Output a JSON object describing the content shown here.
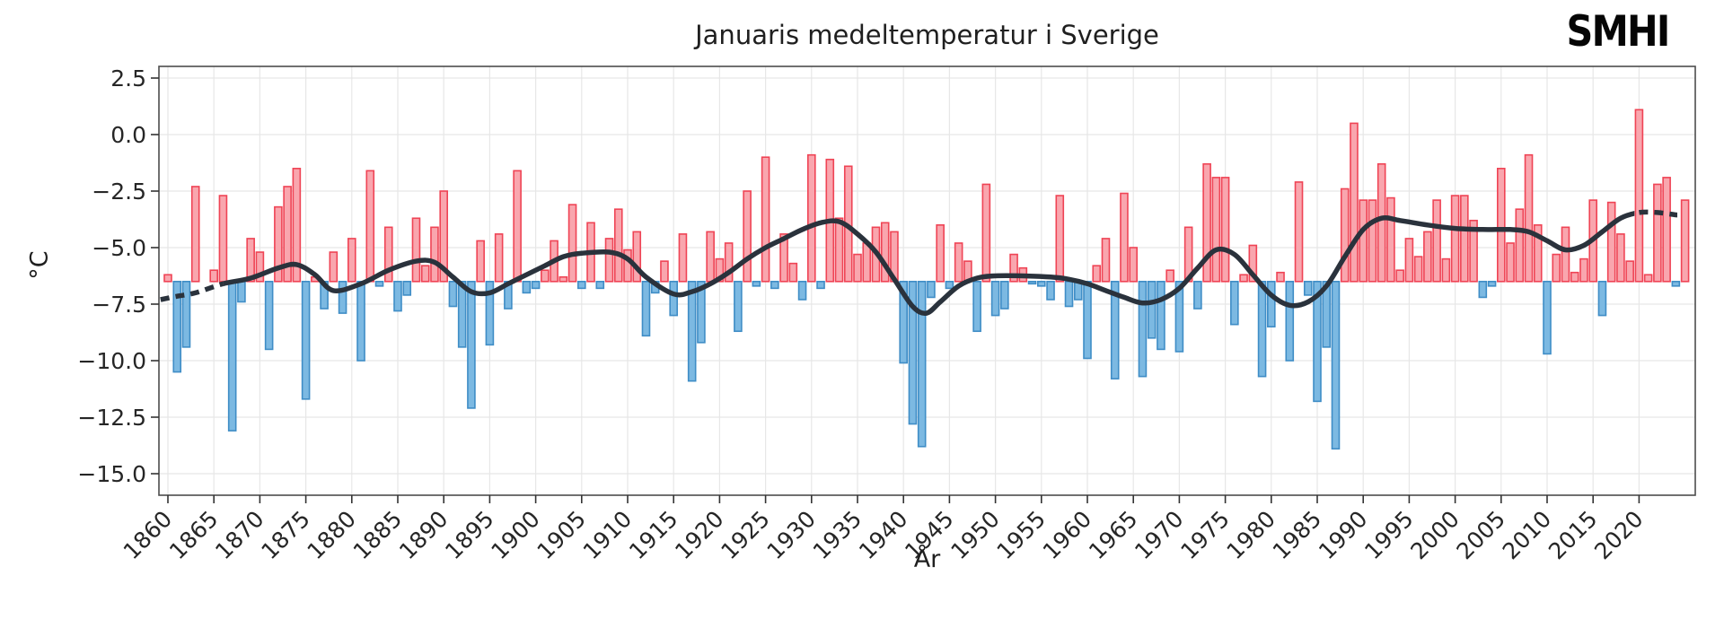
{
  "header": {
    "title": "Januaris medeltemperatur i Sverige",
    "logo_text": "SMHI"
  },
  "chart_data": {
    "type": "bar",
    "title": "Januaris medeltemperatur i Sverige",
    "xlabel": "År",
    "ylabel": "°C",
    "grid": true,
    "legend": "none",
    "xlim": [
      1859,
      2026.2
    ],
    "ylim": [
      -16.1,
      3.0
    ],
    "baseline": -6.5,
    "ytick_values": [
      2.5,
      0.0,
      -2.5,
      -5.0,
      -7.5,
      -10.0,
      -12.5,
      -15.0
    ],
    "ytick_labels": [
      "2.5",
      "0.0",
      "−2.5",
      "−5.0",
      "−7.5",
      "−10.0",
      "−12.5",
      "−15.0"
    ],
    "xtick_labels": [
      "1860",
      "1865",
      "1870",
      "1875",
      "1880",
      "1885",
      "1890",
      "1895",
      "1900",
      "1905",
      "1910",
      "1915",
      "1920",
      "1925",
      "1930",
      "1935",
      "1940",
      "1945",
      "1950",
      "1955",
      "1960",
      "1965",
      "1970",
      "1975",
      "1980",
      "1985",
      "1990",
      "1995",
      "2000",
      "2005",
      "2010",
      "2015",
      "2020"
    ],
    "year_start": 1860,
    "year_end": 2025,
    "values": [
      -6.2,
      -10.5,
      -9.4,
      -2.3,
      -6.5,
      -6.0,
      -2.7,
      -13.1,
      -7.4,
      -4.6,
      -5.2,
      -9.5,
      -3.2,
      -2.3,
      -1.5,
      -11.7,
      -6.3,
      -7.7,
      -5.2,
      -7.9,
      -4.6,
      -10.0,
      -1.6,
      -6.7,
      -4.1,
      -7.8,
      -7.1,
      -3.7,
      -5.8,
      -4.1,
      -2.5,
      -7.6,
      -9.4,
      -12.1,
      -4.7,
      -9.3,
      -4.4,
      -7.7,
      -1.6,
      -7.0,
      -6.8,
      -6.0,
      -4.7,
      -6.3,
      -3.1,
      -6.8,
      -3.9,
      -6.8,
      -4.6,
      -3.3,
      -5.1,
      -4.3,
      -8.9,
      -7.0,
      -5.6,
      -8.0,
      -4.4,
      -10.9,
      -9.2,
      -4.3,
      -5.5,
      -4.8,
      -8.7,
      -2.5,
      -6.7,
      -1.0,
      -6.8,
      -4.4,
      -5.7,
      -7.3,
      -0.9,
      -6.8,
      -1.1,
      -3.7,
      -1.4,
      -5.3,
      -4.8,
      -4.1,
      -3.9,
      -4.3,
      -10.1,
      -12.8,
      -13.8,
      -7.2,
      -4.0,
      -6.8,
      -4.8,
      -5.6,
      -8.7,
      -2.2,
      -8.0,
      -7.7,
      -5.3,
      -5.9,
      -6.6,
      -6.7,
      -7.3,
      -2.7,
      -7.6,
      -7.3,
      -9.9,
      -5.8,
      -4.6,
      -10.8,
      -2.6,
      -5.0,
      -10.7,
      -9.0,
      -9.5,
      -6.0,
      -9.6,
      -4.1,
      -7.7,
      -1.3,
      -1.9,
      -1.9,
      -8.4,
      -6.2,
      -4.9,
      -10.7,
      -8.5,
      -6.1,
      -10.0,
      -2.1,
      -7.1,
      -11.8,
      -9.4,
      -13.9,
      -2.4,
      0.5,
      -2.9,
      -2.9,
      -1.3,
      -2.8,
      -6.0,
      -4.6,
      -5.4,
      -4.3,
      -2.9,
      -5.5,
      -2.7,
      -2.7,
      -3.8,
      -7.2,
      -6.7,
      -1.5,
      -4.8,
      -3.3,
      -0.9,
      -4.0,
      -9.7,
      -5.3,
      -4.1,
      -6.1,
      -5.5,
      -2.9,
      -8.0,
      -3.0,
      -4.4,
      -5.6,
      1.1,
      -6.2,
      -2.2,
      -1.9,
      -6.7,
      -2.9
    ],
    "smoothed_line": {
      "dashed_until_year": 1866,
      "dashed_from_year": 2019.5,
      "points": [
        [
          1859.2,
          -7.3
        ],
        [
          1861,
          -7.15
        ],
        [
          1863,
          -7.0
        ],
        [
          1866,
          -6.6
        ],
        [
          1869,
          -6.35
        ],
        [
          1872,
          -5.9
        ],
        [
          1874,
          -5.75
        ],
        [
          1876,
          -6.2
        ],
        [
          1878,
          -6.9
        ],
        [
          1881,
          -6.6
        ],
        [
          1884,
          -6.0
        ],
        [
          1887,
          -5.6
        ],
        [
          1889,
          -5.65
        ],
        [
          1891,
          -6.3
        ],
        [
          1893,
          -6.95
        ],
        [
          1895,
          -7.0
        ],
        [
          1897,
          -6.6
        ],
        [
          1899,
          -6.2
        ],
        [
          1901,
          -5.8
        ],
        [
          1903,
          -5.4
        ],
        [
          1905,
          -5.25
        ],
        [
          1908,
          -5.2
        ],
        [
          1910,
          -5.5
        ],
        [
          1912,
          -6.3
        ],
        [
          1915,
          -7.05
        ],
        [
          1917,
          -6.95
        ],
        [
          1919,
          -6.6
        ],
        [
          1921,
          -6.1
        ],
        [
          1923,
          -5.5
        ],
        [
          1925,
          -5.0
        ],
        [
          1927,
          -4.6
        ],
        [
          1929,
          -4.2
        ],
        [
          1931,
          -3.9
        ],
        [
          1933,
          -3.85
        ],
        [
          1935,
          -4.4
        ],
        [
          1937,
          -5.2
        ],
        [
          1939,
          -6.4
        ],
        [
          1941,
          -7.6
        ],
        [
          1942.5,
          -7.9
        ],
        [
          1944,
          -7.4
        ],
        [
          1946,
          -6.7
        ],
        [
          1948,
          -6.35
        ],
        [
          1950,
          -6.25
        ],
        [
          1953,
          -6.25
        ],
        [
          1956,
          -6.3
        ],
        [
          1958,
          -6.4
        ],
        [
          1960,
          -6.6
        ],
        [
          1962,
          -6.9
        ],
        [
          1964,
          -7.2
        ],
        [
          1966,
          -7.45
        ],
        [
          1968,
          -7.3
        ],
        [
          1970,
          -6.8
        ],
        [
          1972,
          -5.9
        ],
        [
          1974,
          -5.1
        ],
        [
          1976,
          -5.3
        ],
        [
          1978,
          -6.2
        ],
        [
          1980,
          -7.1
        ],
        [
          1982,
          -7.55
        ],
        [
          1984,
          -7.4
        ],
        [
          1986,
          -6.7
        ],
        [
          1988,
          -5.4
        ],
        [
          1990,
          -4.2
        ],
        [
          1992,
          -3.7
        ],
        [
          1994,
          -3.8
        ],
        [
          1997,
          -4.0
        ],
        [
          2000,
          -4.15
        ],
        [
          2003,
          -4.2
        ],
        [
          2006,
          -4.2
        ],
        [
          2008,
          -4.3
        ],
        [
          2010,
          -4.7
        ],
        [
          2012,
          -5.1
        ],
        [
          2014,
          -4.9
        ],
        [
          2016,
          -4.3
        ],
        [
          2018,
          -3.7
        ],
        [
          2020,
          -3.45
        ],
        [
          2022,
          -3.45
        ],
        [
          2024,
          -3.55
        ],
        [
          2025.3,
          -3.6
        ]
      ]
    },
    "colors": {
      "above_fill": "#f9a6ae",
      "above_stroke": "#ef4455",
      "below_fill": "#7cb9e2",
      "below_stroke": "#3f8dc6",
      "line": "#2a323c",
      "grid": "#e7e7e7",
      "axis_border": "#4d4d4d",
      "tick_text": "#262626",
      "background": "#ffffff"
    }
  }
}
